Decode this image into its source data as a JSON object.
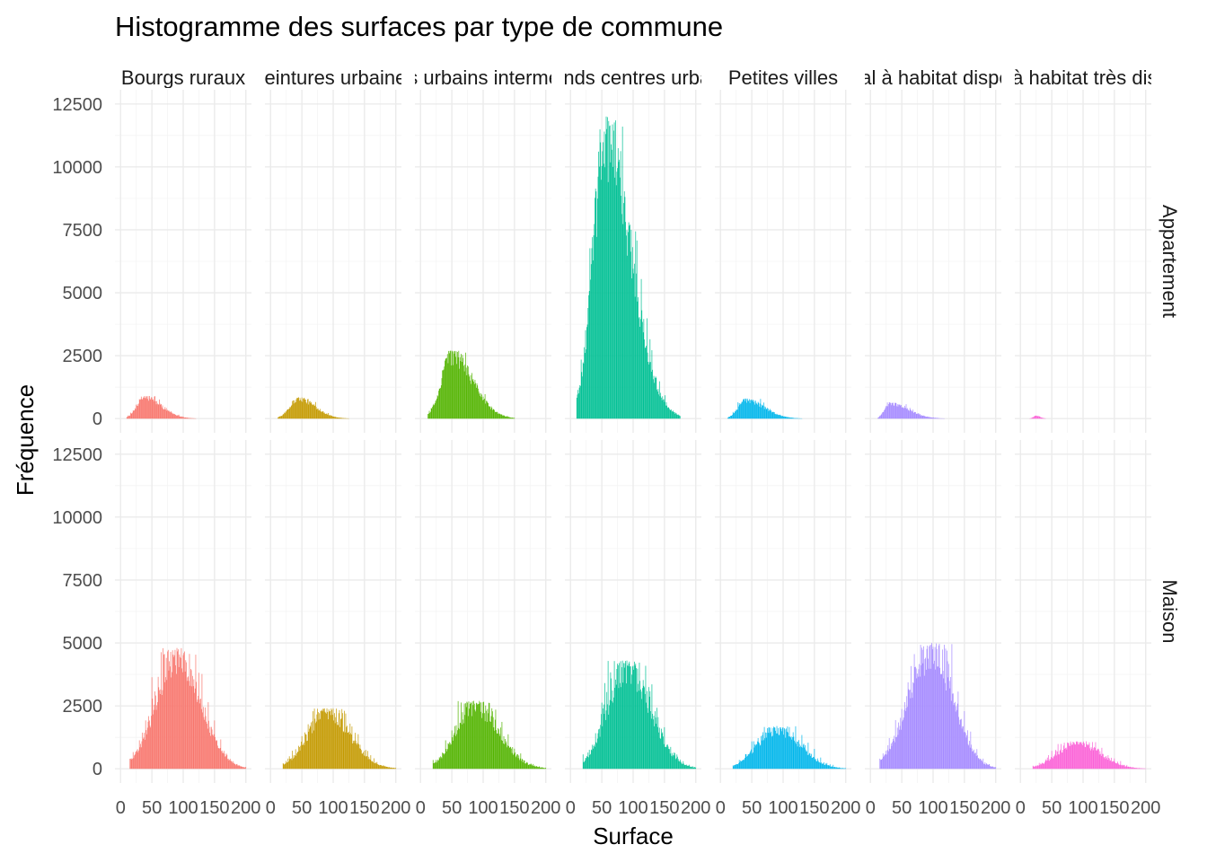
{
  "chart_data": {
    "type": "bar",
    "subtype": "faceted-histogram",
    "title": "Histogramme des surfaces par type de commune",
    "xlabel": "Surface",
    "ylabel": "Fréquence",
    "xlim": [
      0,
      200
    ],
    "ylim": [
      0,
      12500
    ],
    "x_ticks": [
      "0",
      "50",
      "100",
      "150",
      "200"
    ],
    "y_ticks": [
      "0",
      "2500",
      "5000",
      "7500",
      "10000",
      "12500"
    ],
    "bin_width": 1,
    "grid": true,
    "legend": "none",
    "columns": [
      {
        "label": "Bourgs ruraux",
        "color": "#F8766D"
      },
      {
        "label": "Ceintures urbaines",
        "color": "#C49A00"
      },
      {
        "label": "Centres urbains intermédiaires",
        "color": "#53B400"
      },
      {
        "label": "Grands centres urbains",
        "color": "#00C094"
      },
      {
        "label": "Petites villes",
        "color": "#00B6EB"
      },
      {
        "label": "Rural à habitat dispersé",
        "color": "#A58AFF"
      },
      {
        "label": "Rural à habitat très dispersé",
        "color": "#FB61D7"
      }
    ],
    "rows": [
      {
        "label": "Appartement"
      },
      {
        "label": "Maison"
      }
    ],
    "series": [
      {
        "row": 0,
        "col": 0,
        "name": "Bourgs ruraux",
        "x_start": 10,
        "x_end": 120,
        "x_peak": 38,
        "peak_value": 900,
        "skew": "right"
      },
      {
        "row": 0,
        "col": 1,
        "name": "Ceintures urbaines",
        "x_start": 12,
        "x_end": 125,
        "x_peak": 45,
        "peak_value": 850,
        "skew": "right"
      },
      {
        "row": 0,
        "col": 2,
        "name": "Centres urbains intermédiaires",
        "x_start": 12,
        "x_end": 150,
        "x_peak": 50,
        "peak_value": 2700,
        "skew": "right"
      },
      {
        "row": 0,
        "col": 3,
        "name": "Grands centres urbains",
        "x_start": 10,
        "x_end": 175,
        "x_peak": 57,
        "peak_value": 12000,
        "skew": "right"
      },
      {
        "row": 0,
        "col": 4,
        "name": "Petites villes",
        "x_start": 12,
        "x_end": 130,
        "x_peak": 40,
        "peak_value": 800,
        "skew": "right"
      },
      {
        "row": 0,
        "col": 5,
        "name": "Rural à habitat dispersé",
        "x_start": 12,
        "x_end": 120,
        "x_peak": 30,
        "peak_value": 650,
        "skew": "right"
      },
      {
        "row": 0,
        "col": 6,
        "name": "Rural à habitat très dispersé",
        "x_start": 15,
        "x_end": 45,
        "x_peak": 25,
        "peak_value": 120,
        "skew": "right"
      },
      {
        "row": 1,
        "col": 0,
        "name": "Bourgs ruraux",
        "x_start": 15,
        "x_end": 200,
        "x_peak": 90,
        "peak_value": 4800,
        "skew": "right"
      },
      {
        "row": 1,
        "col": 1,
        "name": "Ceintures urbaines",
        "x_start": 20,
        "x_end": 200,
        "x_peak": 90,
        "peak_value": 2400,
        "skew": "right"
      },
      {
        "row": 1,
        "col": 2,
        "name": "Centres urbains intermédiaires",
        "x_start": 20,
        "x_end": 200,
        "x_peak": 85,
        "peak_value": 2700,
        "skew": "right"
      },
      {
        "row": 1,
        "col": 3,
        "name": "Grands centres urbains",
        "x_start": 20,
        "x_end": 200,
        "x_peak": 90,
        "peak_value": 4300,
        "skew": "right"
      },
      {
        "row": 1,
        "col": 4,
        "name": "Petites villes",
        "x_start": 20,
        "x_end": 200,
        "x_peak": 90,
        "peak_value": 1700,
        "skew": "right"
      },
      {
        "row": 1,
        "col": 5,
        "name": "Rural à habitat dispersé",
        "x_start": 15,
        "x_end": 200,
        "x_peak": 98,
        "peak_value": 5000,
        "skew": "right"
      },
      {
        "row": 1,
        "col": 6,
        "name": "Rural à habitat très dispersé",
        "x_start": 20,
        "x_end": 200,
        "x_peak": 90,
        "peak_value": 1100,
        "skew": "right"
      }
    ]
  }
}
